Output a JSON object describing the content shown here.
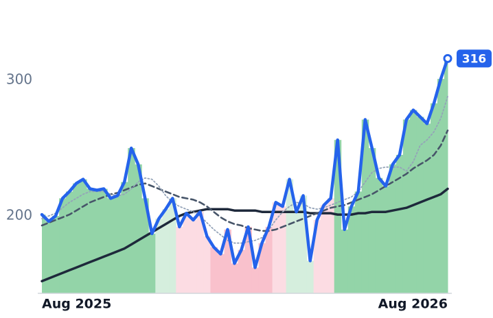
{
  "chart_data": {
    "type": "line",
    "categories": [
      "Aug 2025",
      null,
      null,
      null,
      null,
      null,
      null,
      null,
      null,
      null,
      null,
      null,
      null,
      null,
      null,
      null,
      null,
      null,
      null,
      null,
      null,
      null,
      null,
      null,
      null,
      null,
      null,
      null,
      null,
      null,
      null,
      null,
      null,
      null,
      null,
      null,
      null,
      null,
      null,
      null,
      null,
      null,
      null,
      null,
      null,
      null,
      null,
      null,
      null,
      null,
      null,
      null,
      null,
      null,
      null,
      null,
      null,
      null,
      null,
      "Aug 2026"
    ],
    "series": [
      {
        "color": "#2563eb",
        "values": [
          201,
          196,
          200,
          213,
          218,
          224,
          227,
          220,
          219,
          220,
          213,
          215,
          225,
          250,
          238,
          213,
          187,
          198,
          205,
          213,
          192,
          202,
          197,
          203,
          185,
          177,
          172,
          190,
          165,
          175,
          192,
          162,
          180,
          192,
          210,
          207,
          227,
          203,
          215,
          167,
          197,
          208,
          213,
          256,
          190,
          207,
          218,
          271,
          250,
          228,
          222,
          238,
          245,
          271,
          278,
          273,
          268,
          283,
          301,
          316
        ]
      },
      {
        "color": "#94a3b8",
        "style": "dotted",
        "values": [
          198,
          200,
          202,
          206,
          210,
          213,
          216,
          218,
          218,
          218,
          216,
          215,
          216,
          220,
          225,
          228,
          227,
          222,
          215,
          210,
          207,
          205,
          203,
          200,
          195,
          190,
          186,
          182,
          180,
          180,
          181,
          182,
          184,
          190,
          197,
          203,
          207,
          210,
          209,
          206,
          205,
          206,
          208,
          210,
          212,
          214,
          218,
          225,
          232,
          235,
          236,
          236,
          236,
          233,
          240,
          252,
          256,
          262,
          272,
          288
        ]
      },
      {
        "color": "#475569",
        "style": "dashed",
        "values": [
          193,
          195,
          197,
          199,
          201,
          204,
          207,
          210,
          212,
          214,
          216,
          217,
          219,
          221,
          223,
          224,
          222,
          220,
          218,
          216,
          214,
          213,
          212,
          210,
          207,
          203,
          199,
          196,
          194,
          193,
          191,
          190,
          189,
          189,
          190,
          192,
          194,
          196,
          198,
          200,
          202,
          204,
          206,
          207,
          208,
          210,
          212,
          214,
          216,
          219,
          222,
          225,
          228,
          231,
          235,
          238,
          241,
          245,
          252,
          263
        ]
      },
      {
        "color": "#1e293b",
        "style": "solid",
        "values": [
          152,
          154,
          156,
          158,
          160,
          162,
          164,
          166,
          168,
          170,
          172,
          174,
          176,
          179,
          182,
          185,
          188,
          191,
          194,
          197,
          200,
          202,
          203,
          204,
          205,
          205,
          205,
          205,
          204,
          204,
          204,
          204,
          203,
          203,
          203,
          203,
          203,
          203,
          203,
          202,
          202,
          202,
          202,
          201,
          201,
          201,
          202,
          202,
          203,
          203,
          203,
          204,
          205,
          206,
          208,
          210,
          212,
          214,
          216,
          220
        ]
      }
    ],
    "zone_colors": [
      "#93d4a8",
      "#93d4a8",
      "#93d4a8",
      "#93d4a8",
      "#93d4a8",
      "#93d4a8",
      "#93d4a8",
      "#93d4a8",
      "#93d4a8",
      "#93d4a8",
      "#93d4a8",
      "#93d4a8",
      "#93d4a8",
      "#93d4a8",
      "#93d4a8",
      "#93d4a8",
      "#93d4a8",
      "#d5eedd",
      "#d5eedd",
      "#d5eedd",
      "#fcdce3",
      "#fcdce3",
      "#fcdce3",
      "#fcdce3",
      "#fcdce3",
      "#f9c1cc",
      "#f9c1cc",
      "#f9c1cc",
      "#f9c1cc",
      "#f9c1cc",
      "#f9c1cc",
      "#f9c1cc",
      "#f9c1cc",
      "#f9c1cc",
      "#fcdce3",
      "#fcdce3",
      "#d5eedd",
      "#d5eedd",
      "#d5eedd",
      "#d5eedd",
      "#fcdce3",
      "#fcdce3",
      "#fcdce3",
      "#93d4a8",
      "#93d4a8",
      "#93d4a8",
      "#93d4a8",
      "#93d4a8",
      "#93d4a8",
      "#93d4a8",
      "#93d4a8",
      "#93d4a8",
      "#93d4a8",
      "#93d4a8",
      "#93d4a8",
      "#93d4a8",
      "#93d4a8",
      "#93d4a8",
      "#93d4a8",
      "#93d4a8"
    ],
    "ylim": [
      143,
      349
    ],
    "yticks": [
      200,
      300
    ]
  }
}
